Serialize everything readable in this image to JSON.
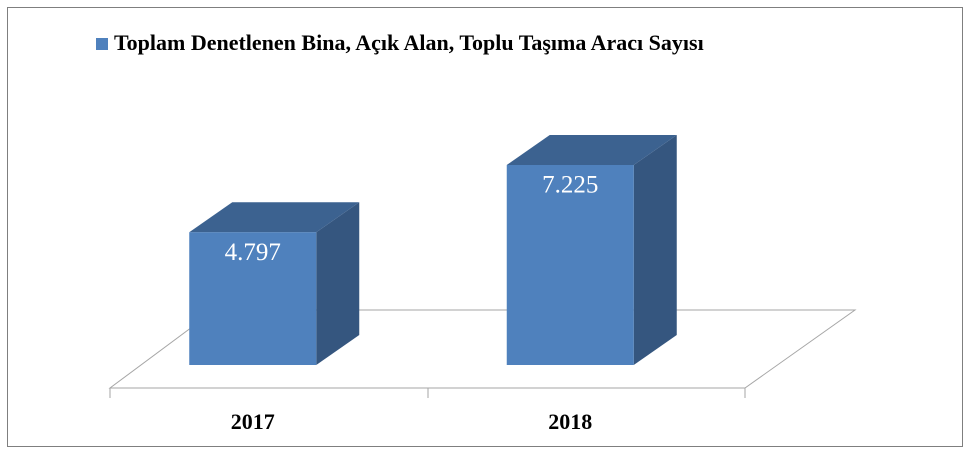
{
  "chart_data": {
    "type": "bar3d",
    "categories": [
      "2017",
      "2018"
    ],
    "series": [
      {
        "name": "Toplam Denetlenen Bina, Açık Alan, Toplu Taşıma Aracı Sayısı",
        "color": "#4f81bd",
        "values": [
          4797,
          7225
        ],
        "value_labels": [
          "4.797",
          "7.225"
        ]
      }
    ],
    "legend": "top"
  }
}
